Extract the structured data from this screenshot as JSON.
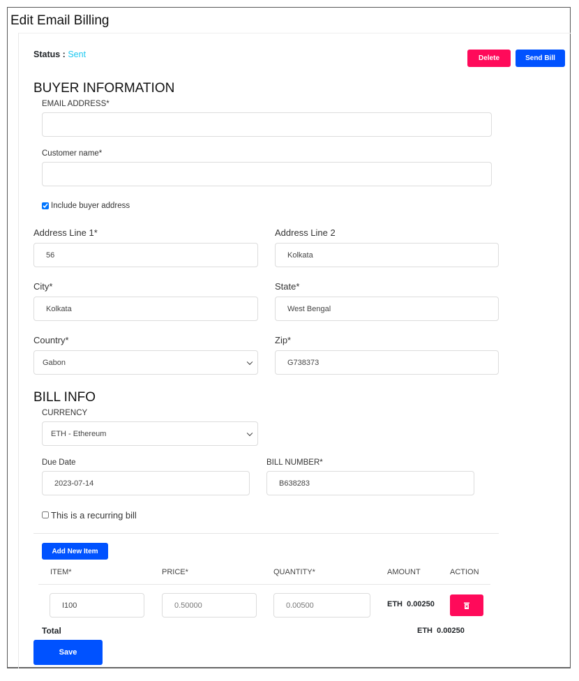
{
  "page": {
    "title": "Edit Email Billing"
  },
  "status": {
    "label": "Status :",
    "value": "Sent",
    "color": "#1ec8f0"
  },
  "actions": {
    "delete": "Delete",
    "send_bill": "Send Bill"
  },
  "buyer": {
    "heading": "BUYER INFORMATION",
    "email_label": "EMAIL ADDRESS*",
    "email_value": "",
    "name_label": "Customer name*",
    "name_value": "",
    "include_address_label": "Include buyer address",
    "include_address_checked": true,
    "address1_label": "Address Line 1*",
    "address1_value": "56",
    "address2_label": "Address Line 2",
    "address2_value": "Kolkata",
    "city_label": "City*",
    "city_value": "Kolkata",
    "state_label": "State*",
    "state_value": "West Bengal",
    "country_label": "Country*",
    "country_value": "Gabon",
    "zip_label": "Zip*",
    "zip_value": "G738373"
  },
  "bill": {
    "heading": "BILL INFO",
    "currency_label": "CURRENCY",
    "currency_value": "ETH - Ethereum",
    "due_label": "Due Date",
    "due_value": "2023-07-14",
    "number_label": "BILL NUMBER*",
    "number_value": "B638283",
    "recurring_label": "This is a recurring bill",
    "recurring_checked": false
  },
  "items": {
    "add_label": "Add New Item",
    "headers": [
      "ITEM*",
      "PRICE*",
      "QUANTITY*",
      "AMOUNT",
      "ACTION"
    ],
    "rows": [
      {
        "item": "I100",
        "price": "0.50000",
        "quantity": "0.00500",
        "amount": "ETH  0.00250"
      }
    ],
    "total_label": "Total",
    "total_value": "ETH  0.00250"
  },
  "save_label": "Save",
  "colors": {
    "primary": "#0052ff",
    "danger": "#ff0a5a"
  }
}
